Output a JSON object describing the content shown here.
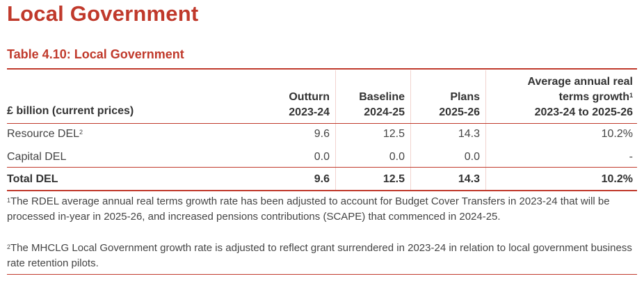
{
  "page_title": "Local Government",
  "table": {
    "title": "Table 4.10: Local Government",
    "header": {
      "row_label": "£ billion (current prices)",
      "columns": [
        {
          "line1": "Outturn",
          "line2": "2023-24"
        },
        {
          "line1": "Baseline",
          "line2": "2024-25"
        },
        {
          "line1": "Plans",
          "line2": "2025-26"
        }
      ],
      "growth_line1": "Average annual real",
      "growth_line2": "terms growth",
      "growth_sup": "1",
      "growth_line3": "2023-24 to 2025-26"
    },
    "rows": [
      {
        "label": "Resource DEL",
        "sup": "2",
        "values": [
          "9.6",
          "12.5",
          "14.3"
        ],
        "growth": "10.2%"
      },
      {
        "label": "Capital DEL",
        "sup": "",
        "values": [
          "0.0",
          "0.0",
          "0.0"
        ],
        "growth": "-"
      },
      {
        "label": "Total DEL",
        "sup": "",
        "values": [
          "9.6",
          "12.5",
          "14.3"
        ],
        "growth": "10.2%"
      }
    ]
  },
  "footnotes": [
    {
      "mark": "1",
      "text": "The RDEL average annual real terms growth rate has been adjusted to account for Budget Cover Transfers in 2023-24 that will be processed in-year in 2025-26, and increased pensions contributions (SCAPE) that commenced in 2024-25."
    },
    {
      "mark": "2",
      "text": "The MHCLG Local Government growth rate is adjusted to reflect grant surrendered in 2023-24 in relation to local government business rate retention pilots."
    }
  ],
  "colors": {
    "accent": "#c0392b",
    "text": "#333333"
  }
}
